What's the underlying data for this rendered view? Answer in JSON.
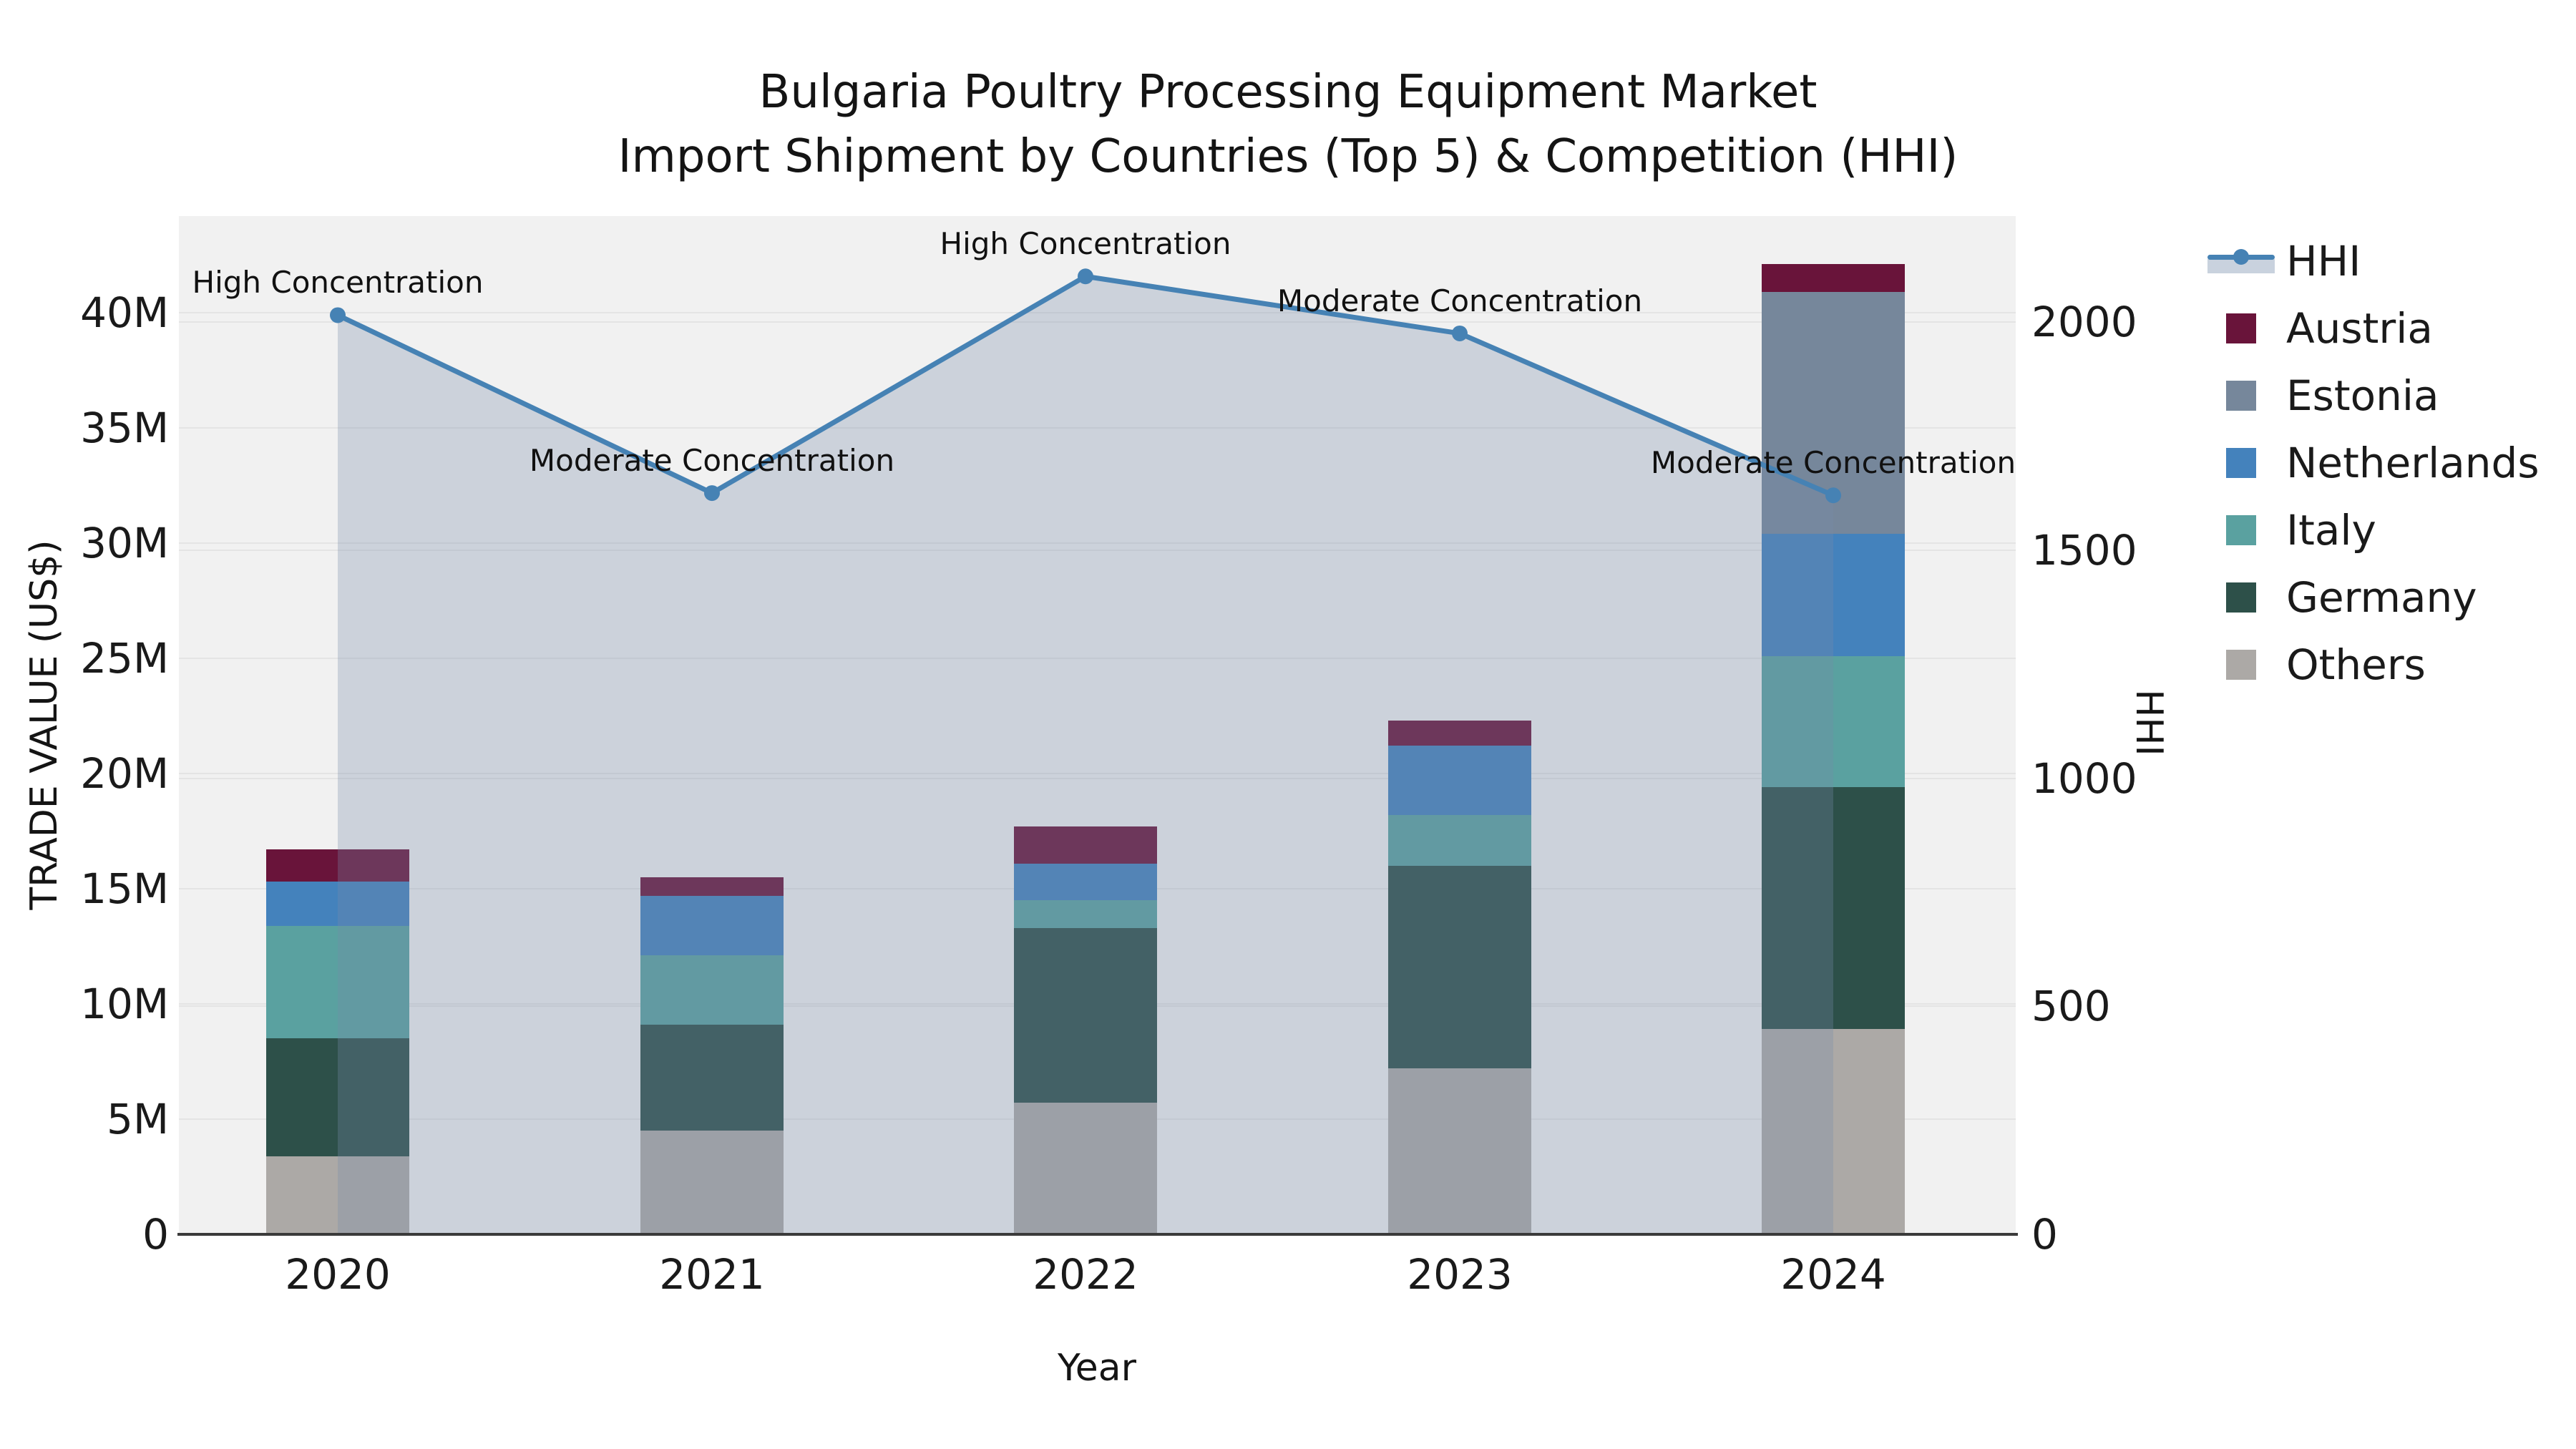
{
  "title": {
    "line1": "Bulgaria Poultry Processing Equipment Market",
    "line2": "Import Shipment by Countries (Top 5) & Competition (HHI)"
  },
  "axes": {
    "y_left_label": "TRADE VALUE (US$)",
    "y_right_label": "HHI",
    "x_label": "Year"
  },
  "colors": {
    "plot_bg": "#f1f1f1",
    "grid": "#e4e4e4",
    "axis_line": "#3a3a3a",
    "text": "#1a1a1a"
  },
  "chart_data": {
    "type": "combo-stacked-bar-line",
    "categories": [
      "2020",
      "2021",
      "2022",
      "2023",
      "2024"
    ],
    "stack_order_bottom_to_top": [
      "Others",
      "Germany",
      "Italy",
      "Netherlands",
      "Estonia",
      "Austria"
    ],
    "series": [
      {
        "name": "Austria",
        "color": "#69143A",
        "values_musd": [
          1.4,
          0.8,
          1.6,
          1.1,
          1.2
        ]
      },
      {
        "name": "Estonia",
        "color": "#76879B",
        "values_musd": [
          0,
          0,
          0,
          0,
          10.5
        ]
      },
      {
        "name": "Netherlands",
        "color": "#4482BC",
        "values_musd": [
          1.9,
          2.6,
          1.6,
          3.0,
          5.3
        ]
      },
      {
        "name": "Italy",
        "color": "#5AA1A0",
        "values_musd": [
          4.9,
          3.0,
          1.2,
          2.2,
          5.7
        ]
      },
      {
        "name": "Germany",
        "color": "#2D5049",
        "values_musd": [
          5.1,
          4.6,
          7.6,
          8.8,
          10.5
        ]
      },
      {
        "name": "Others",
        "color": "#ACA9A6",
        "values_musd": [
          3.4,
          4.5,
          5.7,
          7.2,
          8.9
        ]
      }
    ],
    "bar_totals_musd": [
      16.7,
      15.5,
      17.7,
      22.3,
      42.1
    ],
    "line": {
      "name": "HHI",
      "color": "#4682B4",
      "fill_color": "rgba(120,140,170,0.30)",
      "values": [
        2015,
        1625,
        2100,
        1975,
        1620
      ]
    },
    "annotations": [
      "High Concentration",
      "Moderate Concentration",
      "High Concentration",
      "Moderate Concentration",
      "Moderate Concentration"
    ],
    "y_left": {
      "ticks": [
        "0",
        "5M",
        "10M",
        "15M",
        "20M",
        "25M",
        "30M",
        "35M",
        "40M"
      ],
      "tick_values_musd": [
        0,
        5,
        10,
        15,
        20,
        25,
        30,
        35,
        40
      ],
      "axis_max_musd": 44.2
    },
    "y_right": {
      "ticks": [
        "0",
        "500",
        "1000",
        "1500",
        "2000"
      ],
      "tick_values": [
        0,
        500,
        1000,
        1500,
        2000
      ],
      "axis_max": 2230
    },
    "grid": true,
    "legend_position": "right"
  },
  "legend": {
    "hhi_label": "HHI"
  }
}
